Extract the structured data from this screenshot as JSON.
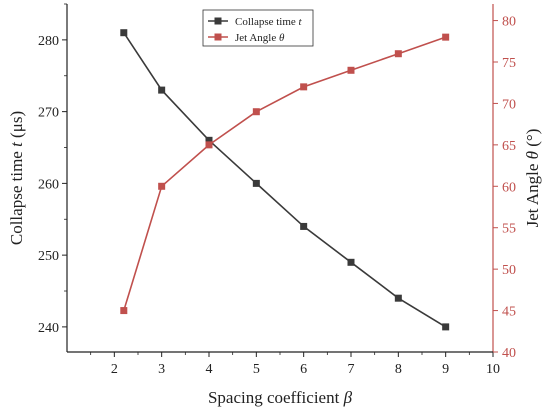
{
  "chart_data": {
    "type": "line",
    "x": [
      2.2,
      3,
      4,
      5,
      6,
      7,
      8,
      9
    ],
    "xlim": [
      1,
      10
    ],
    "xticks": [
      2,
      3,
      4,
      5,
      6,
      7,
      8,
      9,
      10
    ],
    "xlabel_prefix": "Spacing coefficient ",
    "xlabel_symbol": "β",
    "series": [
      {
        "name_prefix": "Collapse time ",
        "name_symbol": "t",
        "axis": "left",
        "color": "#3a3a3a",
        "marker": "square",
        "values": [
          281,
          273,
          266,
          260,
          254,
          249,
          244,
          240
        ]
      },
      {
        "name_prefix": "Jet Angle ",
        "name_symbol": "θ",
        "axis": "right",
        "color": "#c0504d",
        "marker": "square",
        "values": [
          45,
          60,
          65,
          69,
          72,
          74,
          76,
          78
        ]
      }
    ],
    "y_left": {
      "label_prefix": "Collapse time ",
      "label_symbol": "t",
      "label_unit": " (μs)",
      "lim": [
        236.5,
        285
      ],
      "ticks": [
        240,
        250,
        260,
        270,
        280
      ],
      "color": "#222222"
    },
    "y_right": {
      "label_prefix": "Jet Angle ",
      "label_symbol": "θ",
      "label_unit": " (°)",
      "lim": [
        40,
        82
      ],
      "ticks": [
        40,
        45,
        50,
        55,
        60,
        65,
        70,
        75,
        80
      ],
      "color": "#c0504d"
    },
    "legend": {
      "position": "top-center"
    },
    "grid": false
  }
}
